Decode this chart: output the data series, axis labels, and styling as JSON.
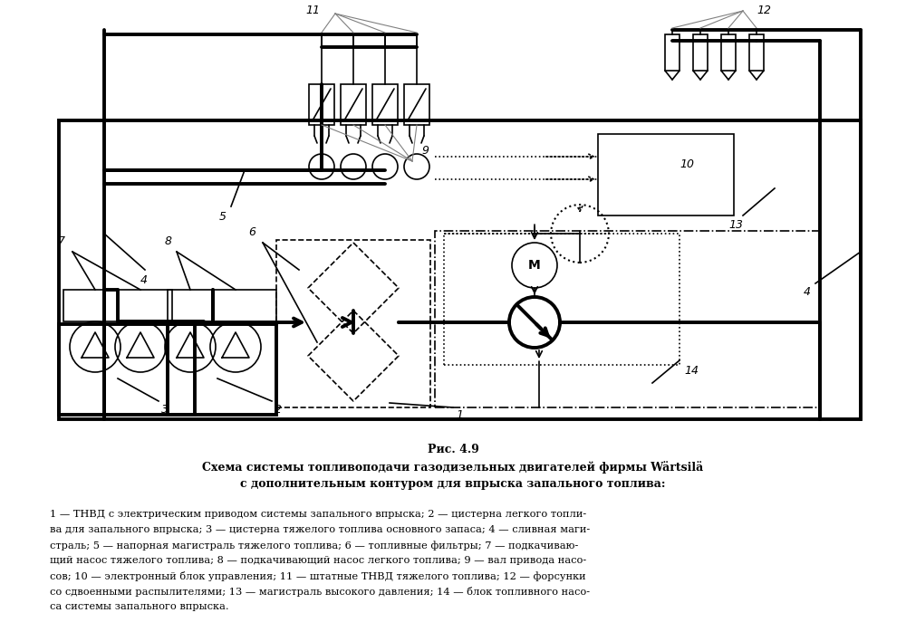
{
  "title_fig": "Рис. 4.9",
  "title_line1": "Схема системы топливоподачи газодизельных двигателей фирмы Wärtsilä",
  "title_line2": "с дополнительным контуром для впрыска запального топлива:",
  "bg_color": "#ffffff",
  "line_color": "#000000",
  "lw": 1.2,
  "lw_thick": 2.8
}
